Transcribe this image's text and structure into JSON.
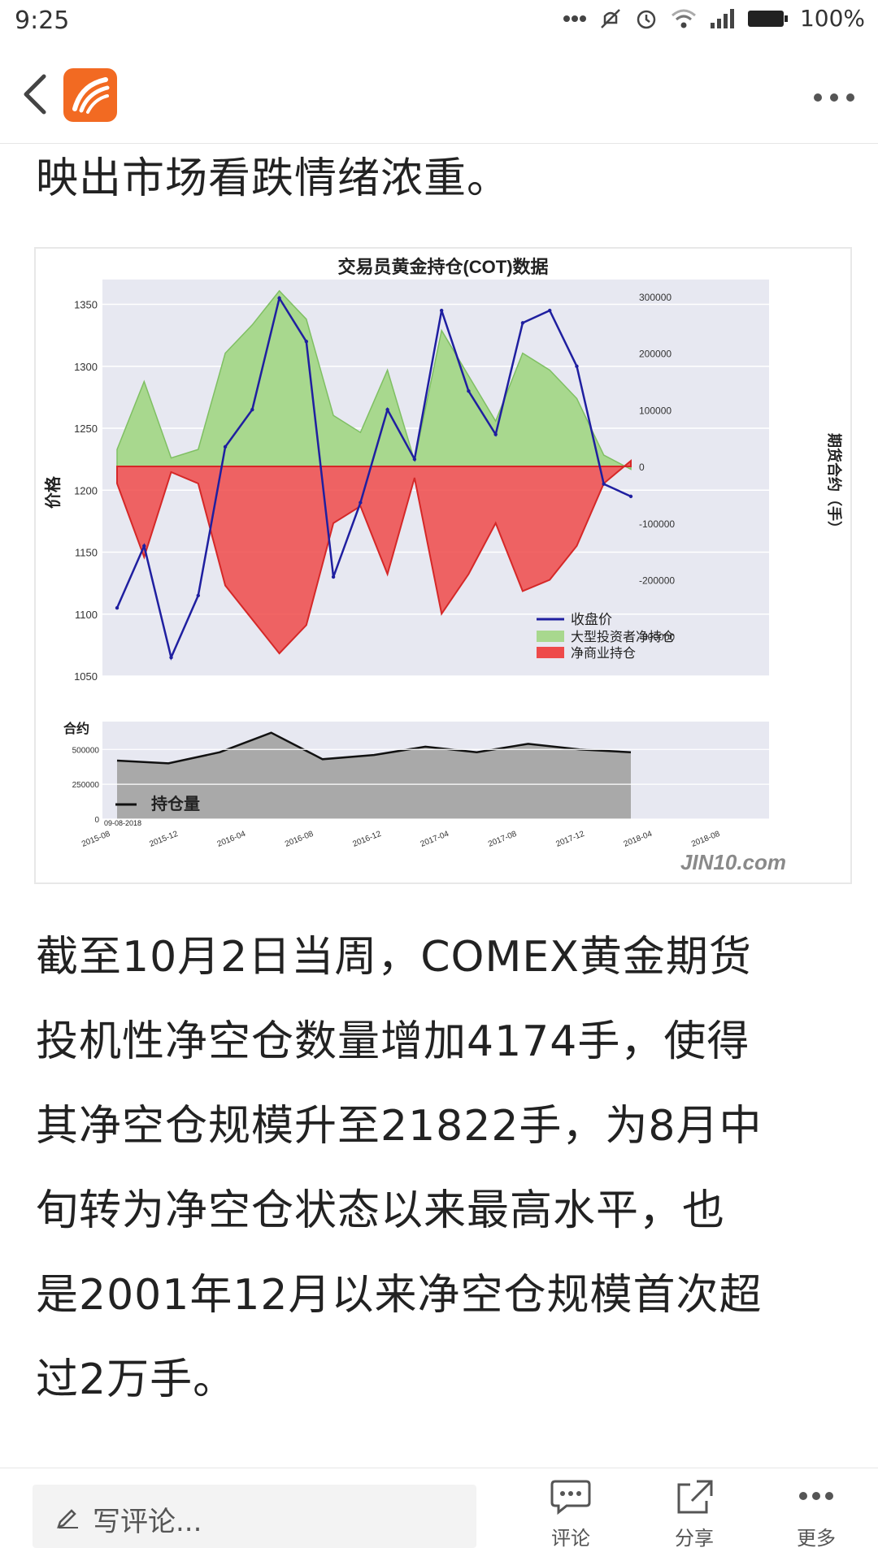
{
  "status_bar": {
    "time": "9:25",
    "battery": "100%",
    "icons": [
      "dots-icon",
      "mute-icon",
      "alarm-icon",
      "wifi-icon",
      "signal-icon",
      "battery-icon"
    ]
  },
  "nav": {
    "back_icon": "chevron-left-icon",
    "logo_icon": "app-logo-icon",
    "more_icon": "more-dots-icon"
  },
  "article": {
    "para1": "映出市场看跌情绪浓重。",
    "para2_lines": [
      "截至10月2日当周，COMEX黄金期货",
      "投机性净空仓数量增加4174手，使得",
      "其净空仓规模升至21822手，为8月中",
      "旬转为净空仓状态以来最高水平，也",
      "是2001年12月以来净空仓规模首次超",
      "过2万手。"
    ]
  },
  "figure": {
    "title": "交易员黄金持仓(COT)数据",
    "watermark": "JIN10.com",
    "left_axis_label": "价格",
    "right_axis_label": "期货合约（手）",
    "left_ticks": [
      "1350",
      "1300",
      "1250",
      "1200",
      "1150",
      "1100",
      "1050"
    ],
    "right_ticks": [
      "300000",
      "200000",
      "100000",
      "0",
      "-100000",
      "-200000",
      "-300000"
    ],
    "legend": [
      "收盘价",
      "大型投资者净持仓",
      "净商业持仓"
    ],
    "oi_label": "合约",
    "oi_ticks": [
      "500000",
      "250000",
      "0"
    ],
    "oi_legend": "持仓量",
    "oi_date_note": "09-08-2018",
    "x_ticks": [
      "2015-08",
      "2015-12",
      "2016-04",
      "2016-08",
      "2016-12",
      "2017-04",
      "2017-08",
      "2017-12",
      "2018-04",
      "2018-08"
    ]
  },
  "colors": {
    "price": "#1f1fa0",
    "net_long": "#a8d88e",
    "net_commercial": "#ee4a4a",
    "oi_fill": "#a9a9a9",
    "logo": "#f26a22"
  },
  "chart_data": [
    {
      "type": "line",
      "title": "交易员黄金持仓(COT)数据",
      "xlabel": "",
      "ylabel": "价格",
      "y2label": "期货合约（手）",
      "x": [
        "2015-08",
        "2015-10",
        "2015-12",
        "2016-02",
        "2016-04",
        "2016-06",
        "2016-08",
        "2016-10",
        "2016-12",
        "2017-02",
        "2017-04",
        "2017-06",
        "2017-08",
        "2017-10",
        "2017-12",
        "2018-02",
        "2018-04",
        "2018-06",
        "2018-08",
        "2018-10"
      ],
      "ylim": [
        1050,
        1370
      ],
      "y2lim": [
        -370000,
        330000
      ],
      "series": [
        {
          "name": "收盘价",
          "axis": "left",
          "values": [
            1105,
            1155,
            1065,
            1115,
            1235,
            1265,
            1355,
            1320,
            1130,
            1190,
            1265,
            1225,
            1345,
            1280,
            1245,
            1335,
            1345,
            1300,
            1205,
            1195
          ]
        },
        {
          "name": "大型投资者净持仓",
          "axis": "right",
          "values": [
            30000,
            150000,
            15000,
            30000,
            200000,
            250000,
            310000,
            260000,
            90000,
            60000,
            170000,
            10000,
            240000,
            160000,
            80000,
            200000,
            170000,
            120000,
            20000,
            -5000
          ]
        },
        {
          "name": "净商业持仓",
          "axis": "right",
          "values": [
            -30000,
            -160000,
            -10000,
            -30000,
            -210000,
            -270000,
            -330000,
            -280000,
            -100000,
            -70000,
            -190000,
            -20000,
            -260000,
            -190000,
            -100000,
            -220000,
            -200000,
            -140000,
            -30000,
            10000
          ]
        }
      ]
    },
    {
      "type": "area",
      "title": "",
      "ylabel": "合约",
      "x": [
        "2015-08",
        "2015-12",
        "2016-04",
        "2016-08",
        "2016-12",
        "2017-04",
        "2017-08",
        "2017-12",
        "2018-04",
        "2018-08",
        "2018-10"
      ],
      "ylim": [
        0,
        700000
      ],
      "series": [
        {
          "name": "持仓量",
          "values": [
            420000,
            400000,
            480000,
            620000,
            430000,
            460000,
            520000,
            480000,
            540000,
            500000,
            480000
          ]
        }
      ]
    }
  ],
  "bottom_bar": {
    "comment_placeholder": "写评论...",
    "actions": [
      {
        "label": "评论",
        "icon": "comment-icon"
      },
      {
        "label": "分享",
        "icon": "share-icon"
      },
      {
        "label": "更多",
        "icon": "more-dots-icon"
      }
    ]
  }
}
